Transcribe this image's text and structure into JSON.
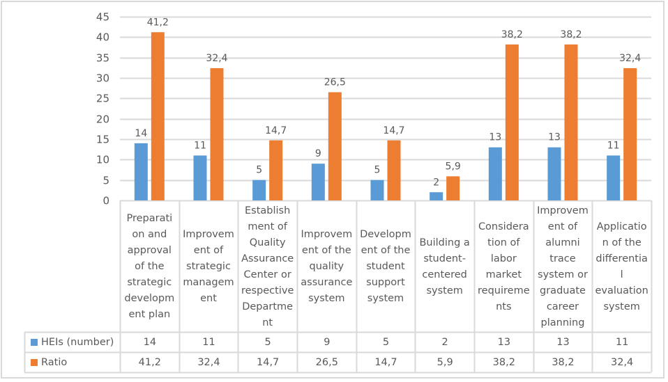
{
  "chart_data": {
    "type": "bar",
    "title": "",
    "xlabel": "",
    "ylabel": "",
    "ylim": [
      0,
      45
    ],
    "yticks": [
      0,
      5,
      10,
      15,
      20,
      25,
      30,
      35,
      40,
      45
    ],
    "grid": true,
    "legend_placement": "data-table-left",
    "categories": [
      "Preparation and approval of the strategic development plan",
      "Improvement of strategic management",
      "Establishment of Quality Assurance Center or respective Department",
      "Improvement of the quality assurance system",
      "Development of the student support system",
      "Building a student-centered system",
      "Consideration of labor market requirements",
      "Improvement of alumni trace system or graduate career planning",
      "Application of the differential evaluation system"
    ],
    "category_labels_wrapped": [
      [
        "Preparati",
        "on and",
        "approval",
        "of the",
        "strategic",
        "developm",
        "ent plan"
      ],
      [
        "Improvem",
        "ent of",
        "strategic",
        "managem",
        "ent"
      ],
      [
        "Establish",
        "ment of",
        "Quality",
        "Assurance",
        "Center or",
        "respective",
        "Departme",
        "nt"
      ],
      [
        "Improvem",
        "ent of the",
        "quality",
        "assurance",
        "system"
      ],
      [
        "Developm",
        "ent of the",
        "student",
        "support",
        "system"
      ],
      [
        "Building a",
        "student-",
        "centered",
        "system"
      ],
      [
        "Considera",
        "tion of",
        "labor",
        "market",
        "requireme",
        "nts"
      ],
      [
        "Improvem",
        "ent of",
        "alumni",
        "trace",
        "system or",
        "graduate",
        "career",
        "planning"
      ],
      [
        "Applicatio",
        "n of the",
        "differentia",
        "l",
        "evaluation",
        "system"
      ]
    ],
    "series": [
      {
        "name": "HEIs (number)",
        "color": "#5b9bd5",
        "values": [
          14,
          11,
          5,
          9,
          5,
          2,
          13,
          13,
          11
        ],
        "labels": [
          "14",
          "11",
          "5",
          "9",
          "5",
          "2",
          "13",
          "13",
          "11"
        ]
      },
      {
        "name": "Ratio",
        "color": "#ed7d31",
        "values": [
          41.2,
          32.4,
          14.7,
          26.5,
          14.7,
          5.9,
          38.2,
          38.2,
          32.4
        ],
        "labels": [
          "41,2",
          "32,4",
          "14,7",
          "26,5",
          "14,7",
          "5,9",
          "38,2",
          "38,2",
          "32,4"
        ]
      }
    ],
    "gridline_color": "#d9d9d9",
    "text_color": "#595959"
  }
}
